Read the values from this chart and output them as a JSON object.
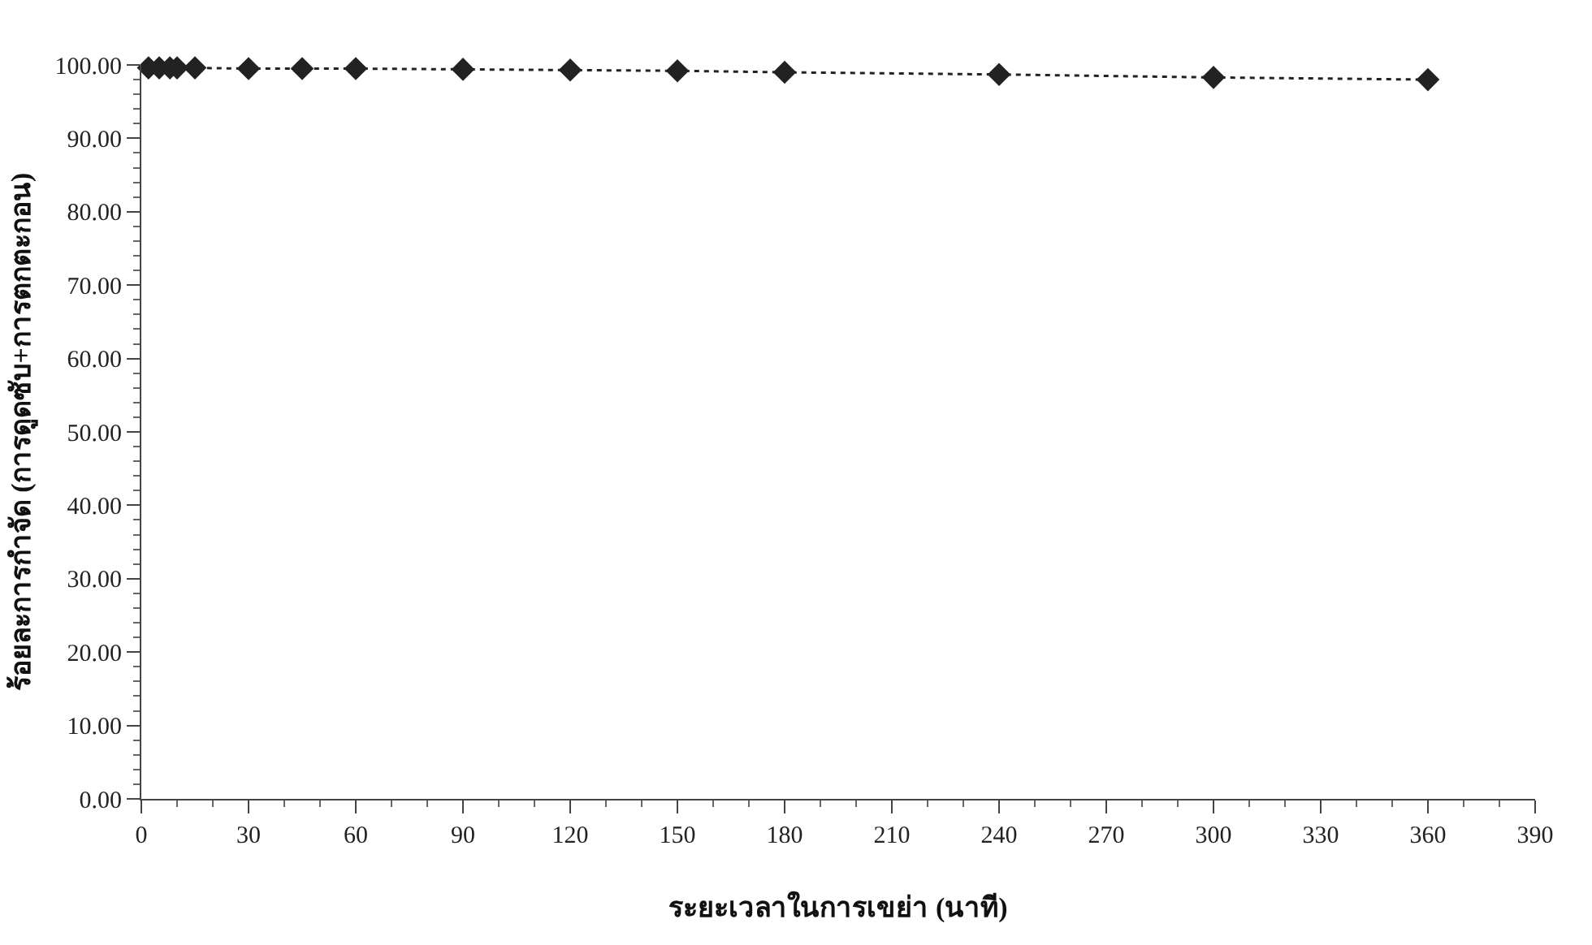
{
  "chart_data": {
    "type": "line",
    "xlabel": "ระยะเวลาในการเขย่า (นาที)",
    "ylabel": "ร้อยละการกำจัด (การดูดซับ+การตกตะกอน)",
    "x": [
      2,
      5,
      8,
      10,
      15,
      30,
      45,
      60,
      90,
      120,
      150,
      180,
      240,
      300,
      360
    ],
    "series": [
      {
        "color": "#222222",
        "values": [
          99.6,
          99.6,
          99.6,
          99.6,
          99.6,
          99.5,
          99.5,
          99.5,
          99.4,
          99.3,
          99.2,
          99.0,
          98.7,
          98.3,
          98.0
        ]
      }
    ],
    "xlim": [
      0,
      390
    ],
    "xticks": [
      0,
      30,
      60,
      90,
      120,
      150,
      180,
      210,
      240,
      270,
      300,
      330,
      360,
      390
    ],
    "ylim": [
      0,
      100
    ],
    "yticks": [
      {
        "value": 0,
        "label": "0.00"
      },
      {
        "value": 10,
        "label": "10.00"
      },
      {
        "value": 20,
        "label": "20.00"
      },
      {
        "value": 30,
        "label": "30.00"
      },
      {
        "value": 40,
        "label": "40.00"
      },
      {
        "value": 50,
        "label": "50.00"
      },
      {
        "value": 60,
        "label": "60.00"
      },
      {
        "value": 70,
        "label": "70.00"
      },
      {
        "value": 80,
        "label": "80.00"
      },
      {
        "value": 90,
        "label": "90.00"
      },
      {
        "value": 100,
        "label": "100.00"
      }
    ],
    "marker": "diamond",
    "line_style": "dotted",
    "legend": false
  }
}
